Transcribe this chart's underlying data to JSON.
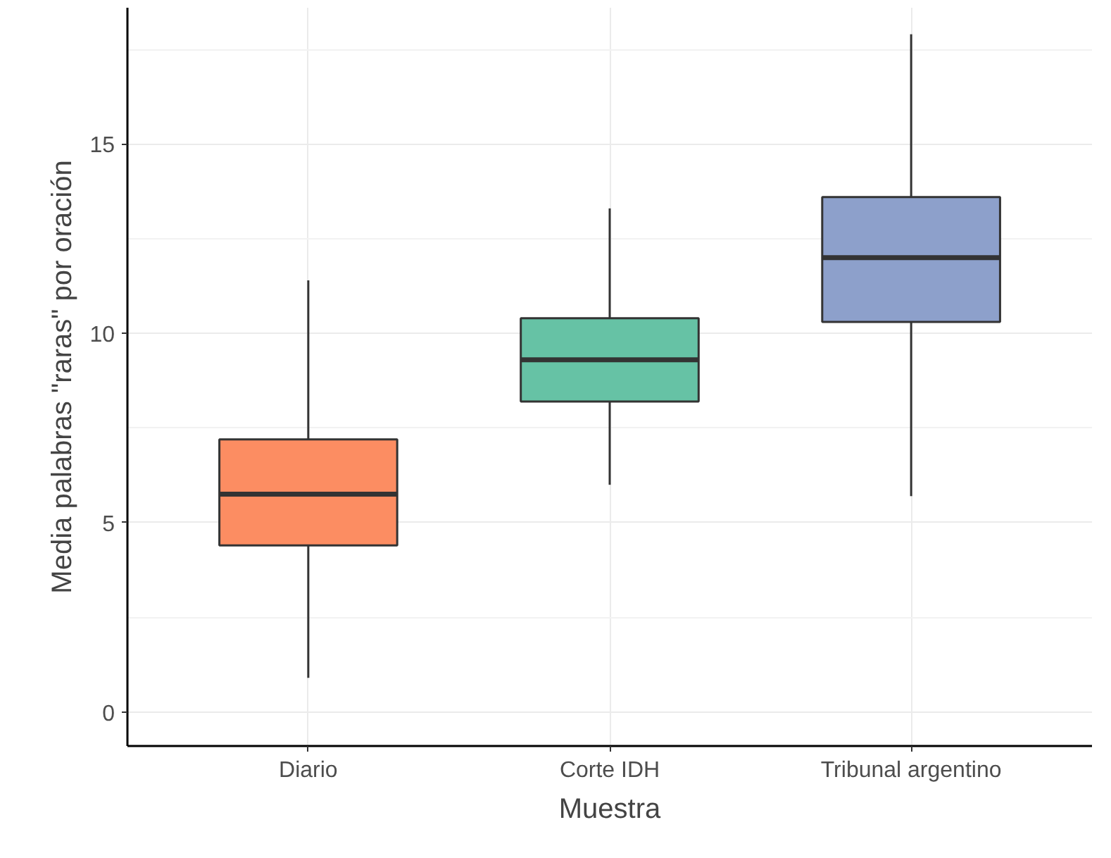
{
  "chart_data": {
    "type": "box",
    "xlabel": "Muestra",
    "ylabel": "Media palabras \"raras\" por oración",
    "categories": [
      "Diario",
      "Corte IDH",
      "Tribunal argentino"
    ],
    "colors": [
      "#fc8d62",
      "#66c2a5",
      "#8da0cb"
    ],
    "boxes": [
      {
        "low": 0.9,
        "q1": 4.4,
        "median": 5.75,
        "q3": 7.2,
        "high": 11.4
      },
      {
        "low": 6.0,
        "q1": 8.2,
        "median": 9.3,
        "q3": 10.4,
        "high": 13.3
      },
      {
        "low": 5.7,
        "q1": 10.3,
        "median": 12.0,
        "q3": 13.6,
        "high": 17.9
      }
    ],
    "ylim": [
      -0.9,
      18.6
    ],
    "yticks": [
      0,
      5,
      10,
      15
    ],
    "grid": true
  }
}
